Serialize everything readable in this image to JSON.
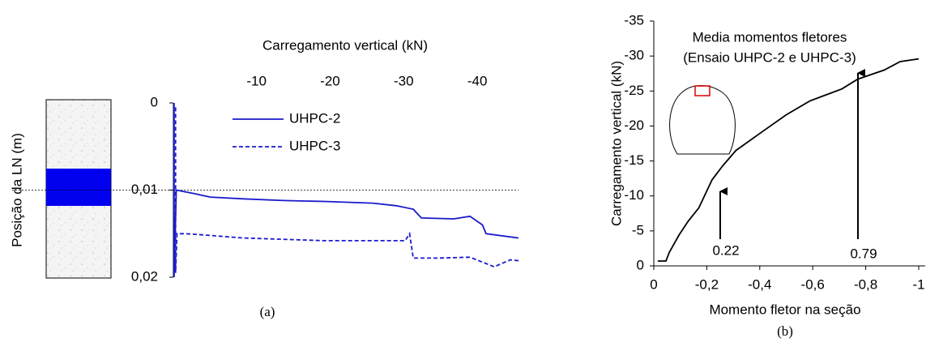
{
  "chart_data": [
    {
      "type": "line",
      "x_axis_position": "top",
      "x_label": "Carregamento vertical (kN)",
      "y_label": "Posição da LN (m)",
      "caption": "(a)",
      "xlim": [
        1.3,
        -45.6
      ],
      "xticks": [
        -10,
        -20,
        -30,
        -40
      ],
      "ylim": [
        0.02,
        0
      ],
      "yticks": [
        0,
        {
          "value": 0.01,
          "label": "0,01"
        },
        {
          "value": 0.02,
          "label": "0,02"
        }
      ],
      "reference_line": true,
      "series": [
        {
          "name": "UHPC-2",
          "color": "#1a1acc",
          "style": "solid",
          "x": [
            1.2,
            1.2,
            0.9,
            -1.5,
            -3.7,
            -8.2,
            -13.7,
            -19.2,
            -25.8,
            -29,
            -31.3,
            -32.4,
            -36.8,
            -39,
            -40.7,
            -41.2,
            -45.6
          ],
          "values": [
            0,
            0.02,
            0.01,
            0.0104,
            0.0108,
            0.011,
            0.0112,
            0.0113,
            0.0115,
            0.0118,
            0.0122,
            0.0132,
            0.0133,
            0.013,
            0.014,
            0.015,
            0.0155
          ]
        },
        {
          "name": "UHPC-3",
          "color": "#1a1acc",
          "style": "dashed",
          "x": [
            1.0,
            1.0,
            0.8,
            -0.4,
            -3.7,
            -8.2,
            -19.2,
            -30.2,
            -30.8,
            -31.3,
            -34.6,
            -39,
            -42.3,
            -44.5,
            -45.6
          ],
          "values": [
            0.0005,
            0.0195,
            0.015,
            0.015,
            0.0152,
            0.0155,
            0.0158,
            0.0158,
            0.015,
            0.0178,
            0.0178,
            0.0177,
            0.0188,
            0.018,
            0.0181
          ]
        }
      ]
    },
    {
      "type": "line",
      "x_axis_position": "bottom",
      "title_lines": [
        "Media momentos fletores",
        "(Ensaio UHPC-2 e UHPC-3)"
      ],
      "annotations": [
        "0.22",
        "0.79"
      ],
      "x_label": "Momento fletor na seção",
      "y_label": "Carregamento vertical (kN)",
      "caption": "(b)",
      "xlim": [
        0,
        -1
      ],
      "xticks": [
        0,
        {
          "value": -0.2,
          "label": "-0,2"
        },
        {
          "value": -0.4,
          "label": "-0,4"
        },
        {
          "value": -0.6,
          "label": "-0,6"
        },
        {
          "value": -0.8,
          "label": "-0,8"
        },
        -1
      ],
      "ylim": [
        0,
        -35
      ],
      "yticks": [
        0,
        -5,
        -10,
        -15,
        -20,
        -25,
        -30,
        -35
      ],
      "series": [
        {
          "color": "#000000",
          "style": "solid",
          "x": [
            -0.015,
            -0.046,
            -0.058,
            -0.095,
            -0.13,
            -0.17,
            -0.22,
            -0.26,
            -0.31,
            -0.41,
            -0.5,
            -0.59,
            -0.71,
            -0.77,
            -0.87,
            -0.93,
            -1.0
          ],
          "values": [
            -0.7,
            -0.7,
            -1.9,
            -4.4,
            -6.4,
            -8.3,
            -12.3,
            -14.3,
            -16.5,
            -19.2,
            -21.6,
            -23.6,
            -25.3,
            -26.7,
            -28.0,
            -29.2,
            -29.6
          ]
        }
      ]
    }
  ]
}
